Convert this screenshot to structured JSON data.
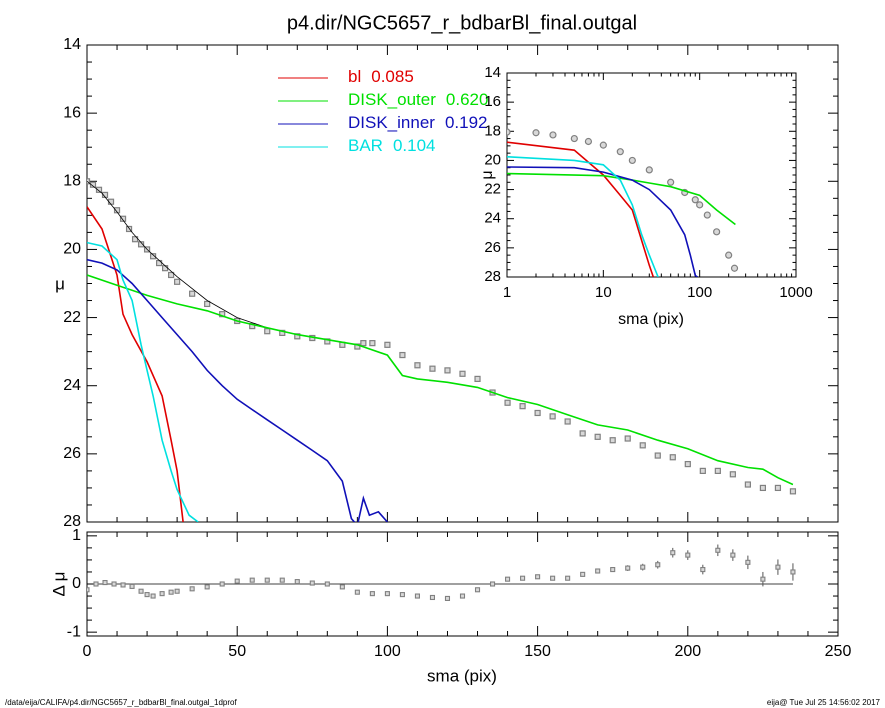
{
  "footer": {
    "left": "/data/eija/CALIFA/p4.dir/NGC5657_r_bdbarBl_final.outgal_1dprof",
    "right": "eija@  Tue Jul 25 14:56:02 2017"
  },
  "chart_data": [
    {
      "type": "line",
      "title": "p4.dir/NGC5657_r_bdbarBl_final.outgal",
      "ylabel": "μ",
      "xlim": [
        0,
        250
      ],
      "ylim": [
        28,
        14
      ],
      "yticks": [
        14,
        16,
        18,
        20,
        22,
        24,
        26,
        28
      ],
      "series": [
        {
          "marker": "square",
          "color": "#808080",
          "x": [
            0,
            2,
            4,
            6,
            8,
            10,
            12,
            14,
            16,
            18,
            20,
            22,
            24,
            26,
            28,
            30,
            35,
            40,
            45,
            50,
            55,
            60,
            65,
            70,
            75,
            80,
            85,
            90,
            92,
            95,
            100,
            105,
            110,
            115,
            120,
            125,
            130,
            135,
            140,
            145,
            150,
            155,
            160,
            165,
            170,
            175,
            180,
            185,
            190,
            195,
            200,
            205,
            210,
            215,
            220,
            225,
            230,
            235
          ],
          "values": [
            18.0,
            18.1,
            18.25,
            18.4,
            18.6,
            18.85,
            19.1,
            19.4,
            19.7,
            19.85,
            20.0,
            20.2,
            20.4,
            20.55,
            20.75,
            20.95,
            21.3,
            21.6,
            21.9,
            22.1,
            22.25,
            22.4,
            22.45,
            22.55,
            22.6,
            22.7,
            22.8,
            22.85,
            22.75,
            22.75,
            22.8,
            23.1,
            23.4,
            23.5,
            23.55,
            23.65,
            23.8,
            24.2,
            24.5,
            24.6,
            24.8,
            24.9,
            25.05,
            25.4,
            25.5,
            25.6,
            25.55,
            25.75,
            26.05,
            26.1,
            26.3,
            26.5,
            26.5,
            26.6,
            26.9,
            27.0,
            27.0,
            27.1
          ]
        },
        {
          "color": "#000000",
          "x": [
            0,
            5,
            10,
            15,
            20,
            25,
            30,
            40,
            50,
            60,
            70,
            80,
            90,
            100,
            105,
            110,
            120,
            130,
            140,
            150,
            160,
            170,
            180,
            190,
            200,
            210,
            220,
            225,
            230,
            235
          ],
          "values": [
            18.0,
            18.35,
            18.9,
            19.5,
            20.0,
            20.4,
            20.8,
            21.5,
            22.0,
            22.3,
            22.5,
            22.65,
            22.8,
            23.1,
            23.7,
            23.8,
            23.9,
            24.05,
            24.35,
            24.55,
            24.85,
            25.15,
            25.3,
            25.6,
            25.85,
            26.2,
            26.4,
            26.45,
            26.7,
            26.9
          ]
        },
        {
          "name": "bl",
          "fraction": "0.085",
          "color": "#e00000",
          "x": [
            0,
            5,
            10,
            12,
            15,
            20,
            25,
            28,
            30,
            32
          ],
          "values": [
            18.75,
            19.4,
            20.75,
            21.9,
            22.5,
            23.3,
            24.3,
            25.6,
            26.5,
            28.0
          ]
        },
        {
          "name": "DISK_outer",
          "fraction": "0.620",
          "color": "#00e000",
          "x": [
            0,
            10,
            20,
            30,
            40,
            50,
            60,
            70,
            80,
            90,
            100,
            105,
            110,
            120,
            130,
            140,
            150,
            160,
            170,
            180,
            190,
            200,
            210,
            220,
            225,
            230,
            235
          ],
          "values": [
            20.75,
            21.05,
            21.35,
            21.6,
            21.8,
            22.1,
            22.3,
            22.5,
            22.65,
            22.8,
            23.1,
            23.7,
            23.8,
            23.9,
            24.05,
            24.35,
            24.55,
            24.85,
            25.15,
            25.3,
            25.6,
            25.85,
            26.2,
            26.4,
            26.45,
            26.7,
            26.9
          ]
        },
        {
          "name": "DISK_inner",
          "fraction": "0.192",
          "color": "#1010b8",
          "x": [
            0,
            5,
            10,
            15,
            20,
            25,
            30,
            35,
            40,
            45,
            50,
            55,
            60,
            65,
            70,
            75,
            80,
            85,
            88,
            90,
            92,
            94,
            97,
            100
          ],
          "values": [
            20.3,
            20.4,
            20.6,
            21.0,
            21.5,
            22.0,
            22.5,
            23.0,
            23.55,
            24.0,
            24.4,
            24.7,
            25.0,
            25.3,
            25.6,
            25.9,
            26.2,
            26.8,
            27.9,
            28.1,
            27.3,
            27.8,
            27.7,
            28.0
          ]
        },
        {
          "name": "BAR",
          "fraction": "0.104",
          "color": "#00e0e0",
          "x": [
            0,
            5,
            10,
            12,
            15,
            18,
            20,
            22,
            25,
            28,
            30,
            34,
            37
          ],
          "values": [
            19.8,
            19.9,
            20.3,
            20.9,
            21.5,
            22.8,
            23.55,
            24.3,
            25.6,
            26.5,
            27.05,
            27.8,
            28.0
          ]
        }
      ]
    },
    {
      "type": "scatter",
      "ylabel": "Δ μ",
      "xlabel": "sma (pix)",
      "xlim": [
        0,
        250
      ],
      "xticks": [
        0,
        50,
        100,
        150,
        200,
        250
      ],
      "ylim": [
        -1.08,
        1.08
      ],
      "yticks": [
        -1,
        0,
        1
      ],
      "color": "#808080",
      "x": [
        0,
        3,
        6,
        9,
        12,
        15,
        18,
        20,
        22,
        25,
        28,
        30,
        35,
        40,
        45,
        50,
        55,
        60,
        65,
        70,
        75,
        80,
        85,
        90,
        95,
        100,
        105,
        110,
        115,
        120,
        125,
        130,
        135,
        140,
        145,
        150,
        155,
        160,
        165,
        170,
        175,
        180,
        185,
        190,
        195,
        200,
        205,
        210,
        215,
        220,
        225,
        230,
        235
      ],
      "values": [
        -0.12,
        0.0,
        0.03,
        0.0,
        -0.02,
        -0.05,
        -0.15,
        -0.22,
        -0.25,
        -0.2,
        -0.17,
        -0.15,
        -0.1,
        -0.06,
        0.0,
        0.06,
        0.08,
        0.08,
        0.08,
        0.05,
        0.02,
        0.0,
        -0.06,
        -0.17,
        -0.2,
        -0.2,
        -0.22,
        -0.25,
        -0.28,
        -0.3,
        -0.25,
        -0.12,
        0.0,
        0.1,
        0.12,
        0.15,
        0.12,
        0.12,
        0.2,
        0.27,
        0.3,
        0.33,
        0.35,
        0.4,
        0.65,
        0.6,
        0.3,
        0.7,
        0.6,
        0.45,
        0.1,
        0.35,
        0.25
      ],
      "errors": [
        0.02,
        0.02,
        0.02,
        0.02,
        0.02,
        0.02,
        0.02,
        0.02,
        0.02,
        0.02,
        0.02,
        0.02,
        0.02,
        0.02,
        0.02,
        0.02,
        0.02,
        0.02,
        0.02,
        0.02,
        0.02,
        0.02,
        0.02,
        0.02,
        0.02,
        0.02,
        0.02,
        0.02,
        0.02,
        0.02,
        0.02,
        0.02,
        0.02,
        0.02,
        0.02,
        0.02,
        0.02,
        0.02,
        0.04,
        0.05,
        0.05,
        0.06,
        0.07,
        0.08,
        0.1,
        0.1,
        0.1,
        0.12,
        0.12,
        0.14,
        0.15,
        0.16,
        0.18
      ]
    },
    {
      "type": "line",
      "log_x": true,
      "xlabel": "sma (pix)",
      "ylabel": "μ",
      "xlim": [
        1,
        1000
      ],
      "xticks": [
        1,
        10,
        100,
        1000
      ],
      "ylim": [
        28,
        14
      ],
      "yticks": [
        14,
        16,
        18,
        20,
        22,
        24,
        26,
        28
      ],
      "series": [
        {
          "marker": "circle",
          "color": "#808080",
          "x": [
            1,
            2,
            3,
            5,
            7,
            10,
            15,
            20,
            30,
            50,
            70,
            90,
            100,
            120,
            150,
            200,
            230
          ],
          "values": [
            18.05,
            18.1,
            18.25,
            18.5,
            18.7,
            18.95,
            19.4,
            20.0,
            20.65,
            21.5,
            22.2,
            22.7,
            23.05,
            23.75,
            24.9,
            26.5,
            27.4
          ]
        },
        {
          "color": "#e00000",
          "x": [
            1,
            5,
            10,
            15,
            20,
            25,
            30,
            33
          ],
          "values": [
            18.75,
            19.3,
            21.0,
            22.4,
            23.4,
            25.5,
            27.2,
            28.0
          ]
        },
        {
          "color": "#00e000",
          "x": [
            1,
            10,
            20,
            30,
            50,
            100,
            150,
            235
          ],
          "values": [
            20.9,
            21.05,
            21.35,
            21.55,
            21.8,
            22.4,
            23.4,
            24.4
          ]
        },
        {
          "color": "#1010b8",
          "x": [
            1,
            5,
            10,
            20,
            30,
            50,
            70,
            80,
            90,
            95
          ],
          "values": [
            20.45,
            20.5,
            20.8,
            21.35,
            22.0,
            23.4,
            25.1,
            26.5,
            27.9,
            28.0
          ]
        },
        {
          "color": "#00e0e0",
          "x": [
            1,
            5,
            10,
            15,
            20,
            25,
            30,
            37
          ],
          "values": [
            19.75,
            20.0,
            20.3,
            21.35,
            23.05,
            25.1,
            26.5,
            28.0
          ]
        }
      ]
    }
  ]
}
